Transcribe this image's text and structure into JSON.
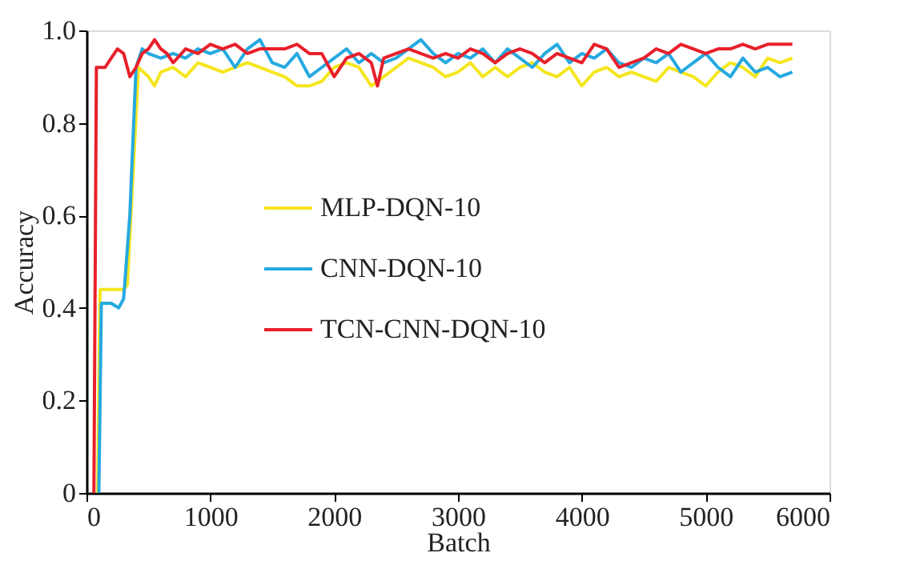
{
  "chart_data": {
    "type": "line",
    "xlabel": "Batch",
    "ylabel": "Accuracy",
    "xlim": [
      0,
      6000
    ],
    "xticks": [
      0,
      1000,
      2000,
      3000,
      4000,
      5000,
      6000
    ],
    "ylim": [
      0,
      1.0
    ],
    "yticks": [
      0,
      0.2,
      0.4,
      0.6,
      0.8,
      {
        "value": 1.0,
        "label": "1.0"
      }
    ],
    "grid": false,
    "legend": "left",
    "marker": "none",
    "line_style": "solid",
    "series": [
      {
        "name": "MLP-DQN-10",
        "color": "#f5e61e",
        "x": [
          90,
          110,
          200,
          300,
          330,
          420,
          500,
          550,
          600,
          700,
          800,
          900,
          1000,
          1100,
          1200,
          1300,
          1400,
          1500,
          1600,
          1700,
          1800,
          1900,
          2000,
          2100,
          2200,
          2300,
          2400,
          2500,
          2600,
          2700,
          2800,
          2900,
          3000,
          3100,
          3200,
          3300,
          3400,
          3500,
          3600,
          3700,
          3800,
          3900,
          4000,
          4100,
          4200,
          4300,
          4400,
          4500,
          4600,
          4700,
          4800,
          4900,
          5000,
          5100,
          5200,
          5300,
          5400,
          5500,
          5600,
          5700
        ],
        "values": [
          0,
          0.44,
          0.44,
          0.44,
          0.45,
          0.92,
          0.9,
          0.88,
          0.91,
          0.92,
          0.9,
          0.93,
          0.92,
          0.91,
          0.92,
          0.93,
          0.92,
          0.91,
          0.9,
          0.88,
          0.88,
          0.89,
          0.92,
          0.93,
          0.92,
          0.88,
          0.9,
          0.92,
          0.94,
          0.93,
          0.92,
          0.9,
          0.91,
          0.93,
          0.9,
          0.92,
          0.9,
          0.92,
          0.93,
          0.91,
          0.9,
          0.92,
          0.88,
          0.91,
          0.92,
          0.9,
          0.91,
          0.9,
          0.89,
          0.92,
          0.91,
          0.9,
          0.88,
          0.91,
          0.93,
          0.92,
          0.9,
          0.94,
          0.93,
          0.94
        ]
      },
      {
        "name": "CNN-DQN-10",
        "color": "#25a9e0",
        "x": [
          100,
          120,
          200,
          260,
          300,
          350,
          400,
          450,
          500,
          600,
          700,
          800,
          900,
          1000,
          1100,
          1200,
          1300,
          1400,
          1500,
          1600,
          1700,
          1800,
          1900,
          2000,
          2100,
          2200,
          2300,
          2400,
          2500,
          2600,
          2700,
          2800,
          2900,
          3000,
          3100,
          3200,
          3300,
          3400,
          3500,
          3600,
          3700,
          3800,
          3900,
          4000,
          4100,
          4200,
          4300,
          4400,
          4500,
          4600,
          4700,
          4800,
          4900,
          5000,
          5100,
          5200,
          5300,
          5400,
          5500,
          5600,
          5700
        ],
        "values": [
          0,
          0.41,
          0.41,
          0.4,
          0.42,
          0.6,
          0.92,
          0.96,
          0.95,
          0.94,
          0.95,
          0.94,
          0.96,
          0.95,
          0.96,
          0.92,
          0.96,
          0.98,
          0.93,
          0.92,
          0.95,
          0.9,
          0.92,
          0.94,
          0.96,
          0.93,
          0.95,
          0.93,
          0.94,
          0.96,
          0.98,
          0.95,
          0.93,
          0.95,
          0.94,
          0.96,
          0.93,
          0.96,
          0.94,
          0.92,
          0.95,
          0.97,
          0.93,
          0.95,
          0.94,
          0.96,
          0.93,
          0.92,
          0.94,
          0.93,
          0.95,
          0.91,
          0.93,
          0.95,
          0.92,
          0.9,
          0.94,
          0.91,
          0.92,
          0.9,
          0.91
        ]
      },
      {
        "name": "TCN-CNN-DQN-10",
        "color": "#e8202a",
        "x": [
          60,
          80,
          150,
          200,
          250,
          300,
          350,
          400,
          450,
          500,
          550,
          600,
          650,
          700,
          800,
          900,
          1000,
          1100,
          1200,
          1300,
          1400,
          1500,
          1600,
          1700,
          1800,
          1900,
          2000,
          2100,
          2200,
          2300,
          2350,
          2400,
          2500,
          2600,
          2700,
          2800,
          2900,
          3000,
          3100,
          3200,
          3300,
          3400,
          3500,
          3600,
          3700,
          3800,
          3900,
          4000,
          4100,
          4200,
          4300,
          4400,
          4500,
          4600,
          4700,
          4800,
          4900,
          5000,
          5100,
          5200,
          5300,
          5400,
          5500,
          5600,
          5700
        ],
        "values": [
          0,
          0.92,
          0.92,
          0.94,
          0.96,
          0.95,
          0.9,
          0.92,
          0.95,
          0.96,
          0.98,
          0.96,
          0.95,
          0.93,
          0.96,
          0.95,
          0.97,
          0.96,
          0.97,
          0.95,
          0.96,
          0.96,
          0.96,
          0.97,
          0.95,
          0.95,
          0.9,
          0.94,
          0.95,
          0.93,
          0.88,
          0.94,
          0.95,
          0.96,
          0.95,
          0.94,
          0.95,
          0.94,
          0.96,
          0.95,
          0.93,
          0.95,
          0.96,
          0.95,
          0.93,
          0.95,
          0.94,
          0.93,
          0.97,
          0.96,
          0.92,
          0.93,
          0.94,
          0.96,
          0.95,
          0.97,
          0.96,
          0.95,
          0.96,
          0.96,
          0.97,
          0.96,
          0.97,
          0.97,
          0.97
        ]
      }
    ]
  }
}
